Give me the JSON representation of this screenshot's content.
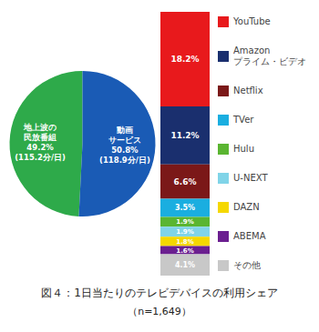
{
  "chart_data": [
    {
      "type": "pie",
      "title": "図４：1日当たりのテレビデバイスの利用シェア",
      "subtitle": "（n=1,649）",
      "values": [
        49.2,
        50.8
      ],
      "value_labels": [
        "地上波の\n民放番組\n49.2%\n(115.2分/日)",
        "動画\nサービス\n50.8%\n(118.9分/日)"
      ],
      "colors": [
        "#2eaa4a",
        "#1a5bb5"
      ],
      "data_labels": true
    },
    {
      "type": "bar",
      "stacked": true,
      "legend": "right",
      "data_labels": true,
      "tick_labels": false,
      "categories": [
        null
      ],
      "ylim": [
        0,
        50.8
      ],
      "series": [
        {
          "name": "YouTube",
          "color": "#e8191c",
          "values": [
            18.2
          ],
          "value_labels": [
            "18.2%"
          ]
        },
        {
          "name": "Amazon\nプライム・ビデオ",
          "color": "#1a2f6e",
          "values": [
            11.2
          ],
          "value_labels": [
            "11.2%"
          ]
        },
        {
          "name": "Netflix",
          "color": "#7b1818",
          "values": [
            6.6
          ],
          "value_labels": [
            "6.6%"
          ]
        },
        {
          "name": "TVer",
          "color": "#1aaee0",
          "values": [
            3.5
          ],
          "value_labels": [
            "3.5%"
          ]
        },
        {
          "name": "Hulu",
          "color": "#5ab531",
          "values": [
            1.9
          ],
          "value_labels": [
            "1.9%"
          ]
        },
        {
          "name": "U-NEXT",
          "color": "#80d4e8",
          "values": [
            1.9
          ],
          "value_labels": [
            "1.9%"
          ]
        },
        {
          "name": "DAZN",
          "color": "#f5d800",
          "values": [
            1.8
          ],
          "value_labels": [
            "1.8%"
          ]
        },
        {
          "name": "ABEMA",
          "color": "#6b1f90",
          "values": [
            1.6
          ],
          "value_labels": [
            "1.6%"
          ]
        },
        {
          "name": "その他",
          "color": "#c8c8c8",
          "values": [
            4.1
          ],
          "value_labels": [
            "4.1%"
          ]
        }
      ]
    }
  ]
}
